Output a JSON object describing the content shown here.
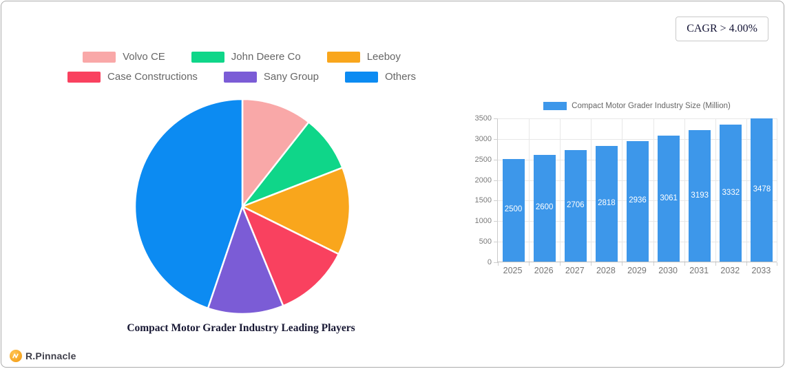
{
  "card": {
    "cagr_label": "CAGR > 4.00%"
  },
  "brand": {
    "name": "R.Pinnacle",
    "icon": "wave-badge-icon",
    "icon_color": "#F5A623"
  },
  "chart_data": [
    {
      "type": "pie",
      "title": "Compact Motor Grader Industry Leading Players",
      "legend_position": "top",
      "legend_rows": 2,
      "labels": [
        "Volvo CE",
        "John Deere Co",
        "Leeboy",
        "Case Constructions",
        "Sany Group",
        "Others"
      ],
      "values": [
        10.6,
        8.5,
        13.2,
        11.5,
        11.4,
        44.8
      ],
      "unit": "% share (estimated from slice angles)",
      "colors": [
        "#F9A8A8",
        "#0FD689",
        "#F9A61C",
        "#F9415F",
        "#7B5CD6",
        "#0C8BF2"
      ],
      "start_angle_deg": 0,
      "direction": "clockwise",
      "slice_gap_color": "#FFFFFF"
    },
    {
      "type": "bar",
      "legend": "Compact Motor Grader Industry Size (Million)",
      "categories": [
        "2025",
        "2026",
        "2027",
        "2028",
        "2029",
        "2030",
        "2031",
        "2032",
        "2033"
      ],
      "values": [
        2500,
        2600,
        2706,
        2818,
        2936,
        3061,
        3193,
        3332,
        3478
      ],
      "bar_color": "#3D97EA",
      "ylim": [
        0,
        3500
      ],
      "ytick_step": 500,
      "grid": true,
      "value_label_position": "inside-center",
      "value_label_color": "#FFFFFF"
    }
  ]
}
